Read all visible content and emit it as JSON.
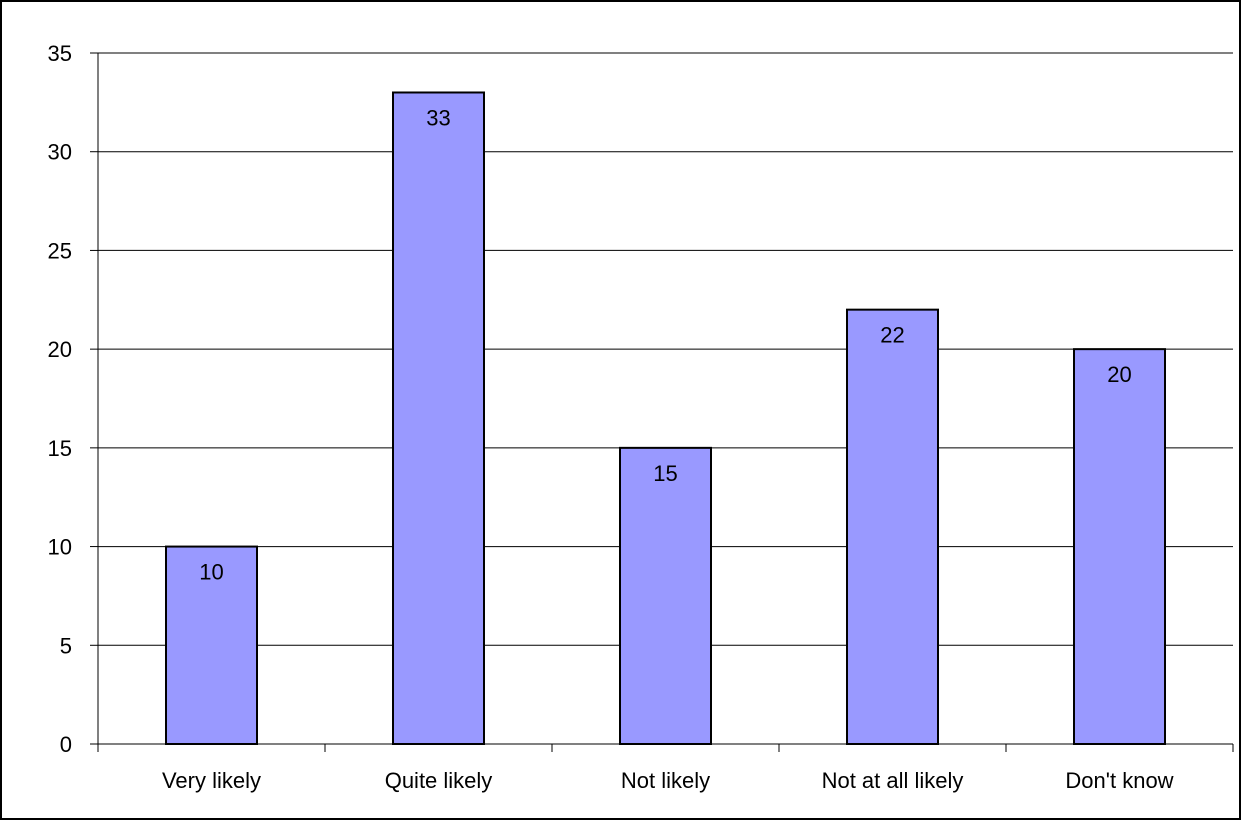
{
  "chart_data": {
    "type": "bar",
    "categories": [
      "Very likely",
      "Quite likely",
      "Not likely",
      "Not at all likely",
      "Don't know"
    ],
    "values": [
      10,
      33,
      15,
      22,
      20
    ],
    "data_labels": [
      "10",
      "33",
      "15",
      "22",
      "20"
    ],
    "ylim": [
      0,
      35
    ],
    "yticks": [
      0,
      5,
      10,
      15,
      20,
      25,
      30,
      35
    ],
    "ytick_labels": [
      "0",
      "5",
      "10",
      "15",
      "20",
      "25",
      "30",
      "35"
    ],
    "grid": true,
    "legend": "none",
    "bar_color": "#9999ff",
    "bar_edge_color": "#000000"
  }
}
